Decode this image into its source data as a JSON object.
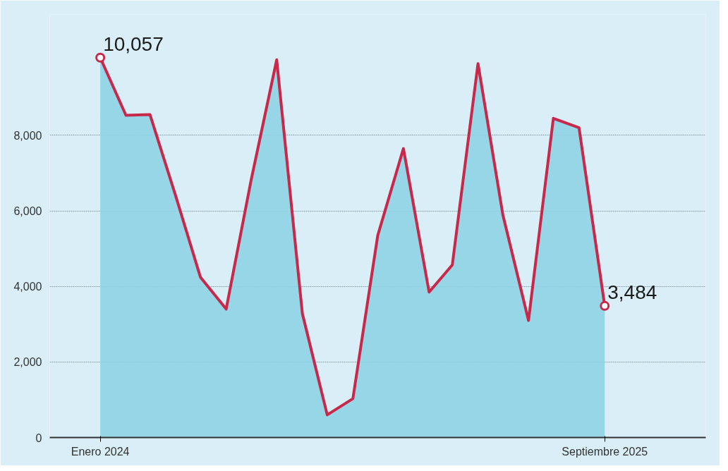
{
  "chart_data": {
    "type": "area",
    "x": [
      "2024-01",
      "2024-02",
      "2024-03",
      "2024-04",
      "2024-05",
      "2024-06",
      "2024-07",
      "2024-08",
      "2024-09",
      "2024-10",
      "2024-11",
      "2024-12",
      "2025-01",
      "2025-02",
      "2025-03",
      "2025-04",
      "2025-05",
      "2025-06",
      "2025-07",
      "2025-08",
      "2025-09"
    ],
    "series": [
      {
        "color": "#8fd3e6",
        "values": [
          10057,
          8530,
          8550,
          6400,
          4240,
          3400,
          6800,
          10000,
          3280,
          600,
          1030,
          5350,
          7650,
          3850,
          4570,
          9900,
          5900,
          3100,
          8450,
          8200,
          3484
        ]
      },
      {
        "type": "line",
        "color": "#c8284a",
        "values": [
          10057,
          8530,
          8550,
          6400,
          4240,
          3400,
          6800,
          10000,
          3280,
          600,
          1030,
          5350,
          7650,
          3850,
          4570,
          9900,
          5900,
          3100,
          8450,
          8200,
          3484
        ],
        "value_labels": [
          "10,057",
          null,
          null,
          null,
          null,
          null,
          null,
          null,
          null,
          null,
          null,
          null,
          null,
          null,
          null,
          null,
          null,
          null,
          null,
          null,
          "3,484"
        ]
      }
    ],
    "xlim": [
      "2023-11",
      "2026-01"
    ],
    "xticks": [
      {
        "value": "2024-01",
        "label": "Enero 2024"
      },
      {
        "value": "2025-09",
        "label": "Septiembre 2025"
      }
    ],
    "ylim": [
      0,
      11200
    ],
    "yticks": [
      0,
      {
        "value": 2000,
        "label": "2,000"
      },
      {
        "value": 4000,
        "label": "4,000"
      },
      {
        "value": 6000,
        "label": "6,000"
      },
      {
        "value": 8000,
        "label": "8,000"
      }
    ],
    "grid": "y"
  }
}
